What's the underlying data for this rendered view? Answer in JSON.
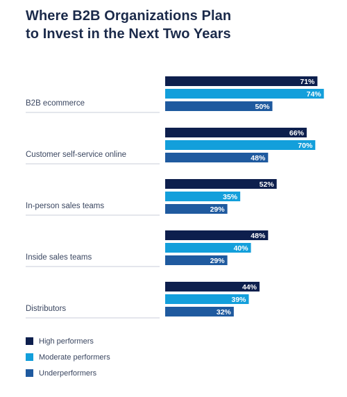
{
  "chart_data": {
    "type": "bar",
    "title_lines": [
      "Where B2B Organizations Plan",
      "to Invest in the Next Two Years"
    ],
    "categories": [
      "B2B ecommerce",
      "Customer self-service online",
      "In-person sales teams",
      "Inside sales teams",
      "Distributors"
    ],
    "series": [
      {
        "name": "High performers",
        "color": "#0d1f4d",
        "values": [
          71,
          66,
          52,
          48,
          44
        ]
      },
      {
        "name": "Moderate performers",
        "color": "#139fdb",
        "values": [
          74,
          70,
          35,
          40,
          39
        ]
      },
      {
        "name": "Underperformers",
        "color": "#1f5a9f",
        "values": [
          50,
          48,
          29,
          29,
          32
        ]
      }
    ],
    "value_format": "{v}%",
    "orientation": "horizontal",
    "xlim": [
      0,
      100
    ],
    "grid": false,
    "legend_position": "bottom-left"
  }
}
